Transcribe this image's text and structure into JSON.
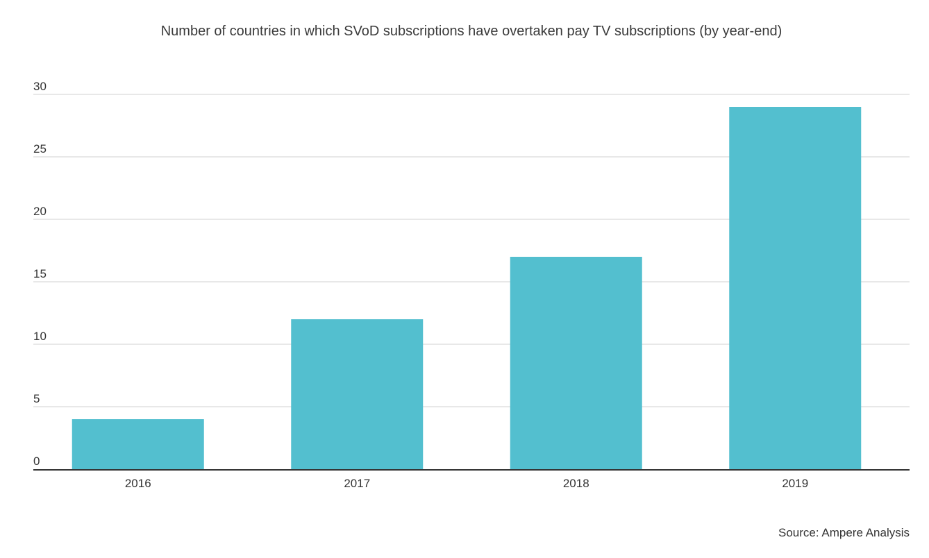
{
  "chart_data": {
    "type": "bar",
    "title": "Number of countries in which SVoD subscriptions have overtaken pay TV subscriptions (by year-end)",
    "categories": [
      "2016",
      "2017",
      "2018",
      "2019"
    ],
    "values": [
      4,
      12,
      17,
      29
    ],
    "ylim": [
      0,
      30
    ],
    "yticks": [
      0,
      5,
      10,
      15,
      20,
      25,
      30
    ],
    "xlabel": "",
    "ylabel": "",
    "grid": true,
    "legend": "none",
    "bar_color": "#53bfcf",
    "grid_color": "#d0d0d0",
    "axis_color": "#333333"
  },
  "source": "Source: Ampere Analysis"
}
